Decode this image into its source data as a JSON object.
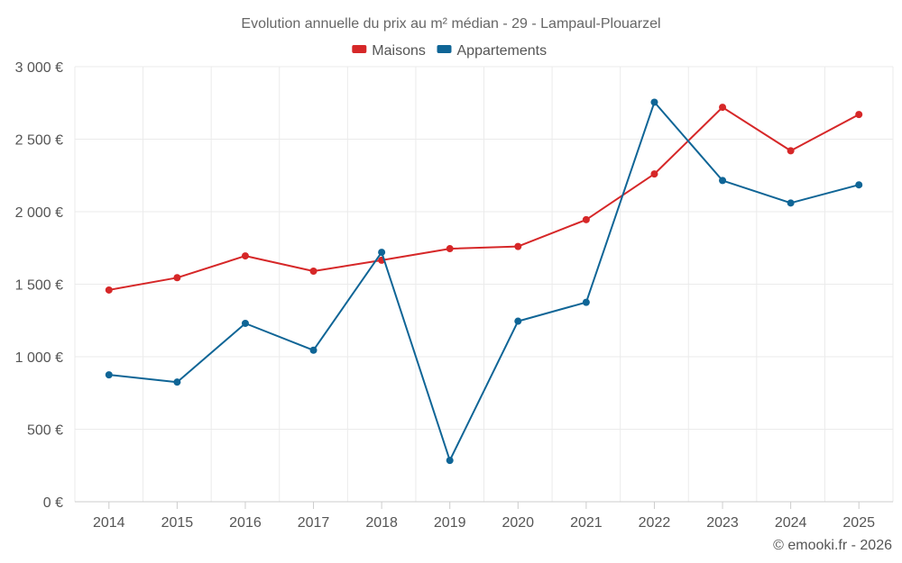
{
  "chart_data": {
    "type": "line",
    "title": "Evolution annuelle du prix au m² médian - 29 - Lampaul-Plouarzel",
    "categories": [
      "2014",
      "2015",
      "2016",
      "2017",
      "2018",
      "2019",
      "2020",
      "2021",
      "2022",
      "2023",
      "2024",
      "2025"
    ],
    "series": [
      {
        "name": "Maisons",
        "color": "#d62728",
        "values": [
          1460,
          1545,
          1695,
          1590,
          1665,
          1745,
          1760,
          1945,
          2260,
          2720,
          2420,
          2670
        ]
      },
      {
        "name": "Appartements",
        "color": "#0f6596",
        "values": [
          875,
          825,
          1230,
          1045,
          1720,
          285,
          1245,
          1375,
          2755,
          2215,
          2060,
          2185
        ]
      }
    ],
    "ylim": [
      0,
      3000
    ],
    "yticks": [
      0,
      500,
      1000,
      1500,
      2000,
      2500,
      3000
    ],
    "ytick_labels": [
      "0 €",
      "500 €",
      "1 000 €",
      "1 500 €",
      "2 000 €",
      "2 500 €",
      "3 000 €"
    ],
    "legend_position": "top-center",
    "grid": true
  },
  "credit": "© emooki.fr - 2026"
}
